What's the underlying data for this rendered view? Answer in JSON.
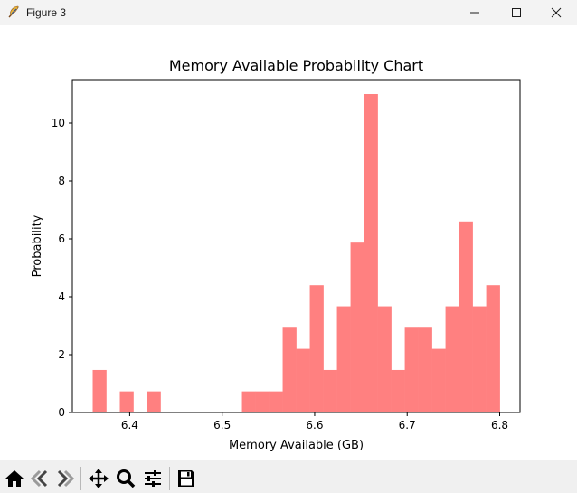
{
  "window": {
    "title": "Figure 3",
    "icons": [
      "app-feather-icon",
      "minimize-icon",
      "maximize-icon",
      "close-icon"
    ]
  },
  "toolbar": {
    "buttons": [
      "home-icon",
      "back-arrow-icon",
      "forward-arrow-icon",
      "pan-icon",
      "zoom-icon",
      "configure-subplots-icon",
      "save-icon"
    ]
  },
  "colors": {
    "bar": "#ff8080",
    "axes": "#000000",
    "titlebar": "#f3f3f3",
    "toolbar": "#f0f0f0"
  },
  "chart_data": {
    "type": "bar",
    "title": "Memory Available Probability Chart",
    "xlabel": "Memory Available (GB)",
    "ylabel": "Probability",
    "xlim": [
      6.338,
      6.822
    ],
    "ylim": [
      0,
      11.5
    ],
    "x_ticks": [
      6.4,
      6.5,
      6.6,
      6.7,
      6.8
    ],
    "x_tick_labels": [
      "6.4",
      "6.5",
      "6.6",
      "6.7",
      "6.8"
    ],
    "y_ticks": [
      0,
      2,
      4,
      6,
      8,
      10
    ],
    "y_tick_labels": [
      "0",
      "2",
      "4",
      "6",
      "8",
      "10"
    ],
    "bins": {
      "start": 6.36,
      "width": 0.01467,
      "values": [
        1.47,
        0,
        0.73,
        0,
        0.73,
        0,
        0,
        0,
        0,
        0,
        0,
        0.73,
        0.73,
        0.73,
        2.93,
        2.2,
        4.4,
        1.47,
        3.67,
        5.87,
        11.0,
        3.67,
        1.47,
        2.93,
        2.93,
        2.2,
        3.67,
        6.6,
        3.67,
        4.4
      ]
    },
    "grid": false,
    "legend": "none"
  }
}
